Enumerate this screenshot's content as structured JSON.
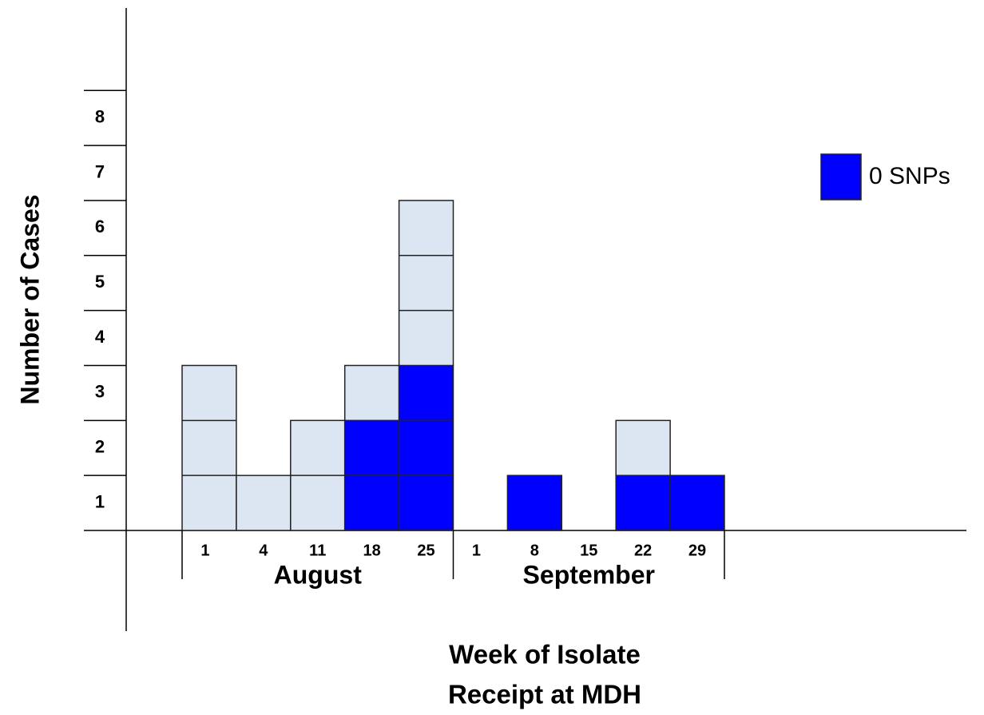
{
  "chart_data": {
    "type": "bar",
    "stacked": true,
    "ylabel": "Number of Cases",
    "xlabel": [
      "Week of Isolate",
      "Receipt at MDH"
    ],
    "categories": [
      "1",
      "4",
      "11",
      "18",
      "25",
      "1",
      "8",
      "15",
      "22",
      "29"
    ],
    "category_groups": [
      {
        "label": "August",
        "size": 5
      },
      {
        "label": "September",
        "size": 5
      }
    ],
    "series": [
      {
        "name": "0 SNPs",
        "color": "#0000ff",
        "values": [
          0,
          0,
          0,
          2,
          3,
          0,
          1,
          0,
          1,
          1
        ]
      },
      {
        "color": "#dce6f2",
        "values": [
          3,
          1,
          2,
          1,
          3,
          0,
          0,
          0,
          1,
          0
        ]
      }
    ],
    "ylim": [
      0,
      9.5
    ],
    "yticks": [
      1,
      2,
      3,
      4,
      5,
      6,
      7,
      8
    ]
  }
}
